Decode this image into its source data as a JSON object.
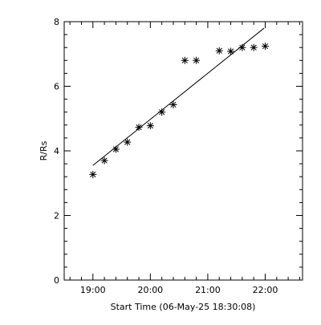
{
  "chart_data": {
    "type": "scatter",
    "xlabel": "Start Time (06-May-25 18:30:08)",
    "ylabel": "R/Rs",
    "xlim": [
      18.5,
      22.65
    ],
    "ylim": [
      0,
      8
    ],
    "x_ticks": [
      19,
      20,
      21,
      22
    ],
    "x_tick_labels": [
      "19:00",
      "20:00",
      "21:00",
      "22:00"
    ],
    "x_minor_step": 0.2,
    "y_ticks": [
      0,
      2,
      4,
      6,
      8
    ],
    "y_tick_labels": [
      "0",
      "2",
      "4",
      "6",
      "8"
    ],
    "y_minor_step": 0.4,
    "grid": false,
    "marker": "asterisk",
    "color": "#000000",
    "series": [
      {
        "type": "scatter",
        "x": [
          19.0,
          19.2,
          19.4,
          19.6,
          19.8,
          20.0,
          20.2,
          20.4,
          20.6,
          20.8,
          21.2,
          21.4,
          21.6,
          21.8,
          22.0
        ],
        "y": [
          3.27,
          3.7,
          4.05,
          4.27,
          4.73,
          4.78,
          5.2,
          5.43,
          6.8,
          6.8,
          7.1,
          7.08,
          7.2,
          7.2,
          7.24
        ]
      },
      {
        "type": "line",
        "x": [
          19.0,
          21.98
        ],
        "y": [
          3.55,
          7.8
        ]
      }
    ]
  }
}
